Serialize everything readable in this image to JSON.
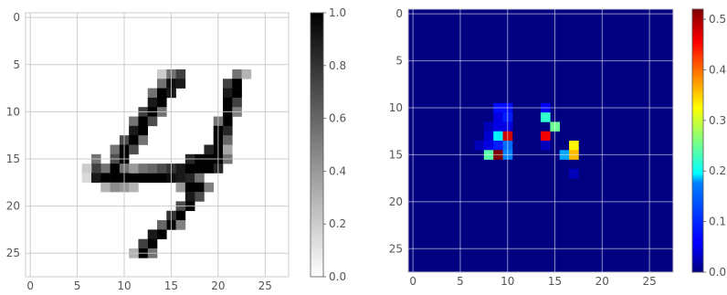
{
  "chart_data": [
    {
      "type": "heatmap",
      "colormap": "binary",
      "grid": true,
      "xlim": [
        -0.5,
        27.5
      ],
      "ylim": [
        27.5,
        -0.5
      ],
      "xticks": [
        0,
        5,
        10,
        15,
        20,
        25
      ],
      "yticks": [
        0,
        5,
        10,
        15,
        20,
        25
      ],
      "xtick_labels": [
        "0",
        "5",
        "10",
        "15",
        "20",
        "25"
      ],
      "ytick_labels": [
        "0",
        "5",
        "10",
        "15",
        "20",
        "25"
      ],
      "colorbar": {
        "vmin": 0.0,
        "vmax": 1.0,
        "ticks": [
          "0.0",
          "0.2",
          "0.4",
          "0.6",
          "0.8",
          "1.0"
        ]
      },
      "cells": [
        [
          14,
          6,
          0.2
        ],
        [
          15,
          6,
          0.55
        ],
        [
          16,
          6,
          0.75
        ],
        [
          14,
          7,
          0.55
        ],
        [
          15,
          7,
          0.95
        ],
        [
          16,
          7,
          0.9
        ],
        [
          13,
          8,
          0.55
        ],
        [
          14,
          8,
          1.0
        ],
        [
          15,
          8,
          0.9
        ],
        [
          13,
          9,
          0.9
        ],
        [
          14,
          9,
          1.0
        ],
        [
          12,
          10,
          0.75
        ],
        [
          13,
          10,
          1.0
        ],
        [
          14,
          10,
          0.55
        ],
        [
          11,
          11,
          0.55
        ],
        [
          12,
          11,
          1.0
        ],
        [
          13,
          11,
          0.7
        ],
        [
          11,
          12,
          0.9
        ],
        [
          12,
          12,
          1.0
        ],
        [
          10,
          13,
          0.7
        ],
        [
          11,
          13,
          1.0
        ],
        [
          12,
          13,
          0.55
        ],
        [
          9,
          14,
          0.55
        ],
        [
          10,
          14,
          1.0
        ],
        [
          11,
          14,
          0.7
        ],
        [
          9,
          15,
          0.7
        ],
        [
          10,
          15,
          1.0
        ],
        [
          8,
          16,
          0.55
        ],
        [
          9,
          16,
          1.0
        ],
        [
          10,
          16,
          0.55
        ],
        [
          7,
          15,
          0.55
        ],
        [
          7,
          16,
          0.75
        ],
        [
          7,
          17,
          0.45
        ],
        [
          6,
          16,
          0.2
        ],
        [
          6,
          17,
          0.15
        ],
        [
          7,
          17,
          0.9
        ],
        [
          8,
          17,
          1.0
        ],
        [
          9,
          17,
          1.0
        ],
        [
          10,
          17,
          1.0
        ],
        [
          11,
          17,
          1.0
        ],
        [
          12,
          17,
          1.0
        ],
        [
          13,
          17,
          1.0
        ],
        [
          14,
          17,
          1.0
        ],
        [
          15,
          17,
          0.95
        ],
        [
          16,
          17,
          0.9
        ],
        [
          17,
          17,
          0.85
        ],
        [
          18,
          17,
          0.55
        ],
        [
          11,
          16,
          0.4
        ],
        [
          12,
          16,
          0.55
        ],
        [
          13,
          16,
          0.6
        ],
        [
          14,
          16,
          0.7
        ],
        [
          15,
          16,
          0.8
        ],
        [
          16,
          16,
          0.9
        ],
        [
          17,
          16,
          1.0
        ],
        [
          18,
          16,
          1.0
        ],
        [
          19,
          16,
          1.0
        ],
        [
          20,
          16,
          0.85
        ],
        [
          17,
          15,
          0.85
        ],
        [
          18,
          15,
          1.0
        ],
        [
          19,
          15,
          1.0
        ],
        [
          20,
          15,
          1.0
        ],
        [
          21,
          15,
          0.55
        ],
        [
          8,
          18,
          0.3
        ],
        [
          9,
          18,
          0.45
        ],
        [
          10,
          18,
          0.4
        ],
        [
          11,
          18,
          0.3
        ],
        [
          16,
          18,
          0.4
        ],
        [
          17,
          18,
          1.0
        ],
        [
          18,
          18,
          1.0
        ],
        [
          19,
          18,
          0.5
        ],
        [
          22,
          6,
          0.55
        ],
        [
          23,
          6,
          0.3
        ],
        [
          21,
          7,
          0.75
        ],
        [
          22,
          7,
          1.0
        ],
        [
          21,
          8,
          0.9
        ],
        [
          22,
          8,
          1.0
        ],
        [
          21,
          9,
          1.0
        ],
        [
          22,
          9,
          0.75
        ],
        [
          21,
          10,
          1.0
        ],
        [
          22,
          10,
          0.5
        ],
        [
          21,
          11,
          1.0
        ],
        [
          20,
          11,
          0.55
        ],
        [
          20,
          12,
          1.0
        ],
        [
          21,
          12,
          0.85
        ],
        [
          20,
          13,
          1.0
        ],
        [
          21,
          13,
          0.6
        ],
        [
          20,
          14,
          1.0
        ],
        [
          19,
          14,
          0.85
        ],
        [
          21,
          14,
          0.35
        ],
        [
          18,
          19,
          0.7
        ],
        [
          17,
          19,
          0.9
        ],
        [
          17,
          20,
          1.0
        ],
        [
          16,
          20,
          0.7
        ],
        [
          16,
          21,
          1.0
        ],
        [
          15,
          21,
          0.8
        ],
        [
          15,
          22,
          1.0
        ],
        [
          16,
          22,
          0.5
        ],
        [
          14,
          22,
          0.6
        ],
        [
          14,
          23,
          1.0
        ],
        [
          13,
          23,
          0.9
        ],
        [
          13,
          24,
          1.0
        ],
        [
          12,
          24,
          0.75
        ],
        [
          12,
          25,
          1.0
        ],
        [
          13,
          25,
          0.55
        ],
        [
          11,
          25,
          0.3
        ]
      ]
    },
    {
      "type": "heatmap",
      "colormap": "jet",
      "grid": true,
      "xlim": [
        -0.5,
        27.5
      ],
      "ylim": [
        27.5,
        -0.5
      ],
      "xticks": [
        0,
        5,
        10,
        15,
        20,
        25
      ],
      "yticks": [
        0,
        5,
        10,
        15,
        20,
        25
      ],
      "xtick_labels": [
        "0",
        "5",
        "10",
        "15",
        "20",
        "25"
      ],
      "ytick_labels": [
        "0",
        "5",
        "10",
        "15",
        "20",
        "25"
      ],
      "colorbar": {
        "vmin": 0.0,
        "vmax": 0.52,
        "ticks": [
          "0.0",
          "0.1",
          "0.2",
          "0.3",
          "0.4",
          "0.5"
        ]
      },
      "background_value": 0.0,
      "cells": [
        [
          9,
          10,
          0.07
        ],
        [
          10,
          10,
          0.07
        ],
        [
          14,
          10,
          0.06
        ],
        [
          9,
          11,
          0.05
        ],
        [
          10,
          11,
          0.08
        ],
        [
          14,
          11,
          0.22
        ],
        [
          8,
          12,
          0.03
        ],
        [
          9,
          12,
          0.05
        ],
        [
          10,
          12,
          0.05
        ],
        [
          15,
          12,
          0.25
        ],
        [
          8,
          13,
          0.04
        ],
        [
          9,
          13,
          0.19
        ],
        [
          10,
          13,
          0.48
        ],
        [
          14,
          13,
          0.46
        ],
        [
          7,
          14,
          0.03
        ],
        [
          8,
          14,
          0.05
        ],
        [
          9,
          14,
          0.08
        ],
        [
          10,
          14,
          0.12
        ],
        [
          14,
          14,
          0.03
        ],
        [
          17,
          14,
          0.33
        ],
        [
          8,
          15,
          0.24
        ],
        [
          9,
          15,
          0.52
        ],
        [
          10,
          15,
          0.13
        ],
        [
          16,
          15,
          0.15
        ],
        [
          17,
          15,
          0.36
        ],
        [
          17,
          17,
          0.03
        ]
      ]
    }
  ]
}
